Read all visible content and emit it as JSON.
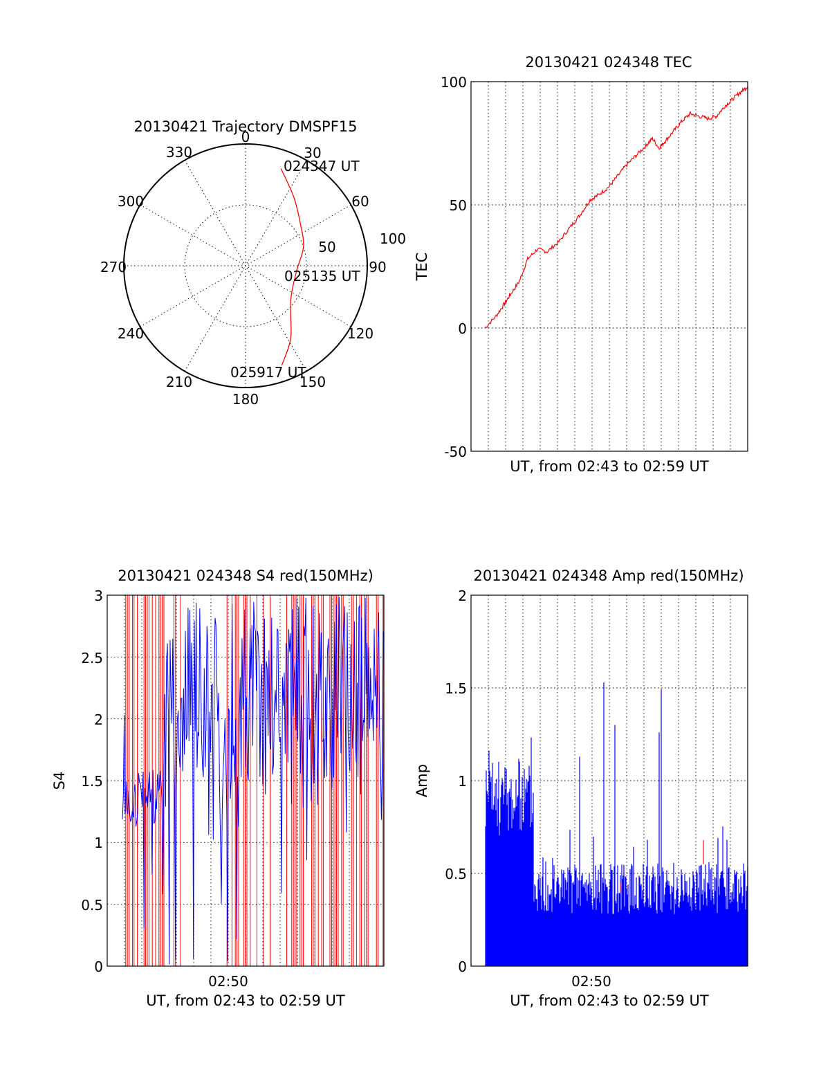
{
  "chart_data": [
    {
      "id": "trajectory",
      "type": "polar",
      "title": "20130421 Trajectory DMSPF15",
      "angle_labels": [
        "0",
        "30",
        "60",
        "90",
        "120",
        "150",
        "180",
        "210",
        "240",
        "270",
        "300",
        "330"
      ],
      "radial_labels": [
        "50",
        "100"
      ],
      "rlim": [
        0,
        100
      ],
      "series": [
        {
          "color": "#ff0000",
          "points": [
            {
              "az": 20,
              "r": 85
            },
            {
              "az": 35,
              "r": 69
            },
            {
              "az": 52,
              "r": 57
            },
            {
              "az": 72,
              "r": 50
            },
            {
              "az": 97,
              "r": 42
            },
            {
              "az": 128,
              "r": 47
            },
            {
              "az": 148,
              "r": 70
            },
            {
              "az": 160,
              "r": 87
            }
          ]
        }
      ],
      "annotations": [
        "024347 UT",
        "025135 UT",
        "025917 UT"
      ]
    },
    {
      "id": "tec",
      "type": "line",
      "title": "20130421 024348 TEC",
      "xlabel": "UT, from 02:43 to 02:59 UT",
      "ylabel": "TEC",
      "xlim": [
        0,
        16
      ],
      "ylim": [
        -50,
        100
      ],
      "yticks": [
        "100",
        "50",
        "0",
        "-50"
      ],
      "grid": true,
      "series": [
        {
          "color": "#ff0000",
          "x": [
            0,
            0.7,
            1.2,
            1.6,
            2.1,
            2.6,
            3.2,
            3.8,
            4.5,
            5.2,
            5.8,
            6.4,
            6.9,
            7.5,
            8.0,
            8.6,
            9.2,
            9.8,
            10.2,
            10.6,
            11.0,
            11.5,
            12.0,
            12.5,
            13.0,
            13.6,
            14.1,
            14.6,
            15.1,
            15.6,
            16.0
          ],
          "y": [
            0,
            5,
            10,
            14,
            19,
            28,
            32,
            31,
            35,
            41,
            46,
            52,
            54,
            57,
            61,
            66,
            70,
            74,
            77,
            73,
            76,
            80,
            84,
            87,
            86,
            85,
            86,
            90,
            93,
            96,
            98
          ]
        }
      ]
    },
    {
      "id": "s4",
      "type": "line",
      "title": "20130421 024348 S4 red(150MHz)",
      "xlabel": "UT, from 02:43 to 02:59 UT",
      "ylabel": "S4",
      "xlim": [
        0,
        16
      ],
      "ylim": [
        0,
        3
      ],
      "yticks": [
        "3",
        "2.5",
        "2",
        "1.5",
        "1",
        "0.5",
        "0"
      ],
      "xticks": [
        "02:50"
      ],
      "grid": true,
      "series": [
        {
          "color": "#ff0000",
          "kind": "dense-noise",
          "range": [
            0,
            3
          ]
        },
        {
          "color": "#0000ff",
          "kind": "dense-noise",
          "range": [
            0,
            3
          ]
        }
      ]
    },
    {
      "id": "amp",
      "type": "line",
      "title": "20130421 024348 Amp red(150MHz)",
      "xlabel": "UT, from 02:43 to 02:59 UT",
      "ylabel": "Amp",
      "xlim": [
        0,
        16
      ],
      "ylim": [
        0,
        2
      ],
      "yticks": [
        "2",
        "1.5",
        "1",
        "0.5",
        "0"
      ],
      "xticks": [
        "02:50"
      ],
      "grid": true,
      "series": [
        {
          "color": "#0000ff",
          "kind": "dense-noise",
          "range": [
            0,
            1.55
          ]
        },
        {
          "color": "#ff0000",
          "kind": "sparse-spikes",
          "range": [
            0,
            0.7
          ]
        }
      ]
    }
  ]
}
